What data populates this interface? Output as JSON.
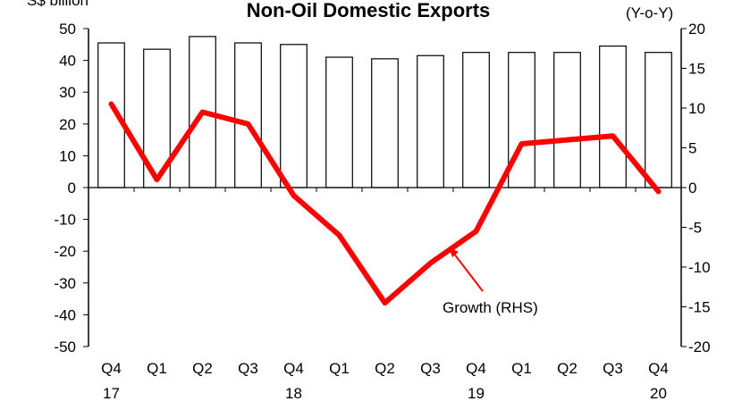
{
  "chart_data": {
    "type": "bar+line",
    "title": "Non-Oil Domestic Exports",
    "left_unit": "S$ billion",
    "right_unit": "(Y-o-Y)",
    "categories": [
      {
        "q": "Q4",
        "y": "17"
      },
      {
        "q": "Q1",
        "y": ""
      },
      {
        "q": "Q2",
        "y": ""
      },
      {
        "q": "Q3",
        "y": ""
      },
      {
        "q": "Q4",
        "y": "18"
      },
      {
        "q": "Q1",
        "y": ""
      },
      {
        "q": "Q2",
        "y": ""
      },
      {
        "q": "Q3",
        "y": ""
      },
      {
        "q": "Q4",
        "y": "19"
      },
      {
        "q": "Q1",
        "y": ""
      },
      {
        "q": "Q2",
        "y": ""
      },
      {
        "q": "Q3",
        "y": ""
      },
      {
        "q": "Q4",
        "y": "20"
      }
    ],
    "left_axis": {
      "min": -50,
      "max": 50,
      "step": 10
    },
    "right_axis": {
      "min": -20,
      "max": 20,
      "step": 5
    },
    "bars": {
      "name": "",
      "axis": "left",
      "color": "#ffffff",
      "edge": "#000000",
      "values": [
        45.5,
        43.5,
        47.5,
        45.5,
        45,
        41,
        40.5,
        41.5,
        42.5,
        42.5,
        42.5,
        44.5,
        42.5
      ]
    },
    "line": {
      "name": "Growth (RHS)",
      "axis": "right",
      "color": "#ff0000",
      "values": [
        10.5,
        1,
        9.5,
        8,
        -1,
        -6,
        -14.5,
        -9.5,
        -5.5,
        5.5,
        6,
        6.5,
        -0.5
      ]
    },
    "annotation": {
      "text": "Growth (RHS)",
      "points_to_index": 8
    },
    "grid": false,
    "legend": "none"
  }
}
